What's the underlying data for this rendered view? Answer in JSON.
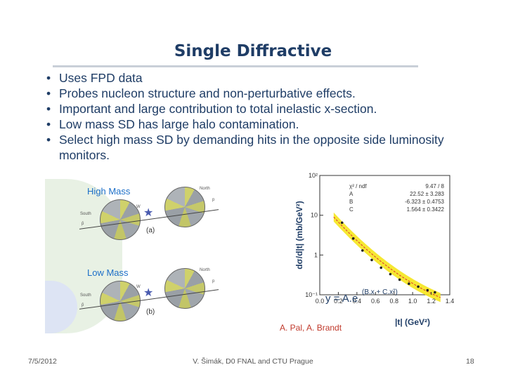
{
  "title": "Single Diffractive",
  "bullets": [
    "Uses FPD data",
    "Probes nucleon structure and non-perturbative effects.",
    "Important and large contribution to total inelastic x-section.",
    "Low mass SD has large halo contamination.",
    "Select high mass SD by demanding hits in the opposite side luminosity monitors."
  ],
  "bullet_marker": "•",
  "diagrams": {
    "high_mass_label": "High Mass",
    "high_mass_tag": "(a)",
    "low_mass_label": "Low Mass",
    "low_mass_tag": "(b)",
    "north": "North",
    "south": "South",
    "w": "W",
    "p": "p",
    "pbar": "p̄"
  },
  "chart_data": {
    "type": "scatter",
    "xlabel": "|t| (GeV²)",
    "ylabel": "dσ/d|t| (mb/GeV²)",
    "xlim": [
      0.0,
      1.4
    ],
    "ylim": [
      0.1,
      100
    ],
    "yscale": "log",
    "x_ticks": [
      "0.0",
      "0.2",
      "0.4",
      "0.6",
      "0.8",
      "1.0",
      "1.2",
      "1.4"
    ],
    "y_ticks": [
      "10⁻¹",
      "1",
      "10",
      "10²"
    ],
    "fit_formula": "y = A.e",
    "fit_exponent": "(B.x + C.x²)",
    "stats": [
      {
        "name": "χ² / ndf",
        "value": "9.47 / 8"
      },
      {
        "name": "A",
        "value": "22.52 ± 3.283"
      },
      {
        "name": "B",
        "value": "-6.323 ± 0.4753"
      },
      {
        "name": "C",
        "value": "1.564 ± 0.3422"
      }
    ],
    "points": {
      "x": [
        0.24,
        0.36,
        0.46,
        0.56,
        0.66,
        0.76,
        0.86,
        0.96,
        1.06,
        1.16,
        1.24
      ],
      "y": [
        6.5,
        2.6,
        1.3,
        0.75,
        0.48,
        0.33,
        0.24,
        0.19,
        0.16,
        0.13,
        0.115
      ]
    },
    "fit": {
      "A": 22.52,
      "B": -6.323,
      "C": 1.564,
      "x_from": 0.15,
      "x_to": 1.3
    },
    "band_color": "#f5e61c",
    "point_color": "#222222",
    "fit_color": "#e03030"
  },
  "credit": "A. Pal, A. Brandt",
  "footer": {
    "date": "7/5/2012",
    "center": "V. Šimák, D0 FNAL and CTU Prague",
    "page": "18"
  }
}
